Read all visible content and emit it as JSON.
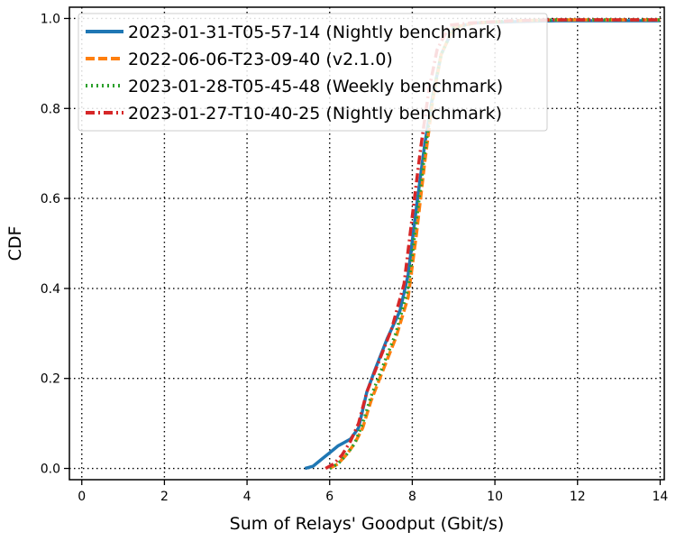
{
  "chart_data": {
    "type": "line",
    "title": "",
    "xlabel": "Sum of Relays' Goodput (Gbit/s)",
    "ylabel": "CDF",
    "xlim": [
      -0.3,
      14.1
    ],
    "ylim": [
      -0.025,
      1.025
    ],
    "xticks": [
      0,
      2,
      4,
      6,
      8,
      10,
      12,
      14
    ],
    "yticks": [
      0.0,
      0.2,
      0.4,
      0.6,
      0.8,
      1.0
    ],
    "xtick_labels": [
      "0",
      "2",
      "4",
      "6",
      "8",
      "10",
      "12",
      "14"
    ],
    "ytick_labels": [
      "0.0",
      "0.2",
      "0.4",
      "0.6",
      "0.8",
      "1.0"
    ],
    "grid": true,
    "legend_position": "top-left",
    "series": [
      {
        "name": "2023-01-31-T05-57-14 (Nightly benchmark)",
        "color": "#1f77b4",
        "style": "solid",
        "x": [
          5.4,
          5.6,
          5.8,
          6.0,
          6.2,
          6.5,
          6.7,
          6.9,
          7.1,
          7.4,
          7.7,
          7.9,
          8.1,
          8.3,
          8.5,
          8.7,
          9.0,
          9.5,
          10.5,
          11.5,
          14.0
        ],
        "y": [
          0.0,
          0.005,
          0.02,
          0.035,
          0.05,
          0.065,
          0.09,
          0.17,
          0.22,
          0.29,
          0.35,
          0.43,
          0.58,
          0.72,
          0.83,
          0.92,
          0.98,
          0.99,
          0.993,
          0.995,
          0.995
        ]
      },
      {
        "name": "2022-06-06-T23-09-40 (v2.1.0)",
        "color": "#ff7f0e",
        "style": "dashed",
        "x": [
          6.0,
          6.2,
          6.4,
          6.6,
          6.8,
          7.0,
          7.3,
          7.6,
          7.9,
          8.1,
          8.3,
          8.5,
          8.7,
          9.0,
          9.5,
          10.5,
          11.5,
          14.0
        ],
        "y": [
          0.0,
          0.01,
          0.03,
          0.055,
          0.09,
          0.15,
          0.22,
          0.29,
          0.38,
          0.52,
          0.68,
          0.82,
          0.92,
          0.98,
          0.99,
          0.995,
          0.997,
          0.997
        ]
      },
      {
        "name": "2023-01-28-T05-45-48 (Weekly benchmark)",
        "color": "#2ca02c",
        "style": "dotted",
        "x": [
          6.0,
          6.2,
          6.4,
          6.6,
          6.8,
          7.0,
          7.3,
          7.6,
          7.9,
          8.1,
          8.3,
          8.5,
          8.7,
          9.0,
          9.5,
          10.5,
          11.5,
          14.0
        ],
        "y": [
          0.0,
          0.01,
          0.03,
          0.055,
          0.1,
          0.16,
          0.23,
          0.3,
          0.4,
          0.55,
          0.7,
          0.83,
          0.92,
          0.98,
          0.99,
          0.995,
          0.997,
          0.997
        ]
      },
      {
        "name": "2023-01-27-T10-40-25 (Nightly benchmark)",
        "color": "#d62728",
        "style": "dashdot",
        "x": [
          5.9,
          6.1,
          6.3,
          6.5,
          6.7,
          6.9,
          7.2,
          7.5,
          7.8,
          8.0,
          8.2,
          8.4,
          8.6,
          8.9,
          9.4,
          10.4,
          11.4,
          14.0
        ],
        "y": [
          0.0,
          0.01,
          0.03,
          0.06,
          0.1,
          0.17,
          0.24,
          0.31,
          0.41,
          0.56,
          0.71,
          0.84,
          0.93,
          0.985,
          0.99,
          0.995,
          0.997,
          0.997
        ]
      }
    ]
  }
}
